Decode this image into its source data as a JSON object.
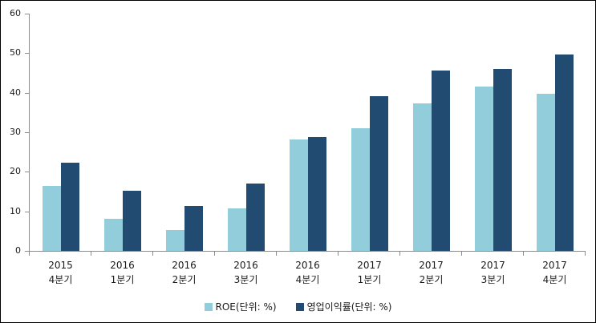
{
  "window": {
    "background": "#ffffff",
    "border_color": "#000000"
  },
  "chart_data": {
    "type": "bar",
    "title": "",
    "xlabel": "",
    "ylabel": "",
    "categories": [
      {
        "line1": "2015",
        "line2": "4분기"
      },
      {
        "line1": "2016",
        "line2": "1분기"
      },
      {
        "line1": "2016",
        "line2": "2분기"
      },
      {
        "line1": "2016",
        "line2": "3분기"
      },
      {
        "line1": "2016",
        "line2": "4분기"
      },
      {
        "line1": "2017",
        "line2": "1분기"
      },
      {
        "line1": "2017",
        "line2": "2분기"
      },
      {
        "line1": "2017",
        "line2": "3분기"
      },
      {
        "line1": "2017",
        "line2": "4분기"
      }
    ],
    "series": [
      {
        "name": "ROE(단위: %)",
        "color": "#92CDDC",
        "values": [
          16.5,
          8.2,
          5.2,
          10.8,
          28.2,
          31.0,
          37.3,
          41.5,
          39.8
        ]
      },
      {
        "name": "영업이익률(단위: %)",
        "color": "#224B72",
        "values": [
          22.3,
          15.3,
          11.4,
          17.0,
          28.8,
          39.2,
          45.6,
          46.0,
          49.6
        ]
      }
    ],
    "ylim": [
      0,
      60
    ],
    "yticks": [
      0,
      10,
      20,
      30,
      40,
      50,
      60
    ],
    "grid": false,
    "legend_position": "bottom-center",
    "axis_color": "#8C8C8C",
    "text_color": "#1a1a1a"
  }
}
